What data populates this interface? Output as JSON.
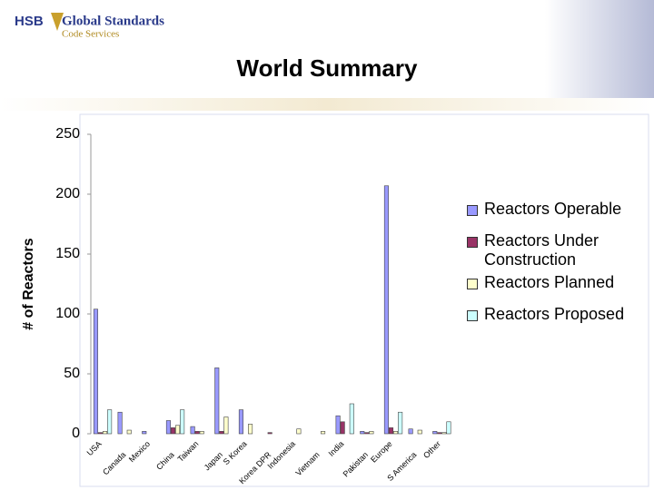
{
  "header": {
    "brand": "HSB",
    "logo_text": "Global Standards",
    "logo_subtext": "Code Services"
  },
  "chart_data": {
    "type": "bar",
    "title": "World Summary",
    "ylabel": "# of Reactors",
    "categories": [
      "USA",
      "Canada",
      "Mexico",
      "China",
      "Taiwan",
      "Japan",
      "S Korea",
      "Korea DPR",
      "Indonesia",
      "Vietnam",
      "India",
      "Pakistan",
      "Europe",
      "S America",
      "Other"
    ],
    "series": [
      {
        "name": "Reactors Operable",
        "color": "#9999ff",
        "values": [
          104,
          18,
          2,
          11,
          6,
          55,
          20,
          0,
          0,
          0,
          15,
          2,
          207,
          4,
          2
        ]
      },
      {
        "name": "Reactors Under Construction",
        "color": "#993366",
        "values": [
          1,
          0,
          0,
          5,
          2,
          2,
          0,
          1,
          0,
          0,
          10,
          1,
          5,
          0,
          1
        ]
      },
      {
        "name": "Reactors Planned",
        "color": "#ffffcc",
        "values": [
          2,
          3,
          0,
          7,
          2,
          14,
          8,
          0,
          4,
          2,
          0,
          2,
          2,
          3,
          1
        ]
      },
      {
        "name": "Reactors Proposed",
        "color": "#ccffff",
        "values": [
          20,
          0,
          0,
          20,
          0,
          0,
          0,
          0,
          0,
          0,
          25,
          0,
          18,
          0,
          10
        ]
      }
    ],
    "ylim": [
      0,
      250
    ],
    "yticks": [
      0,
      50,
      100,
      150,
      200,
      250
    ],
    "grid": false,
    "legend": "right"
  }
}
